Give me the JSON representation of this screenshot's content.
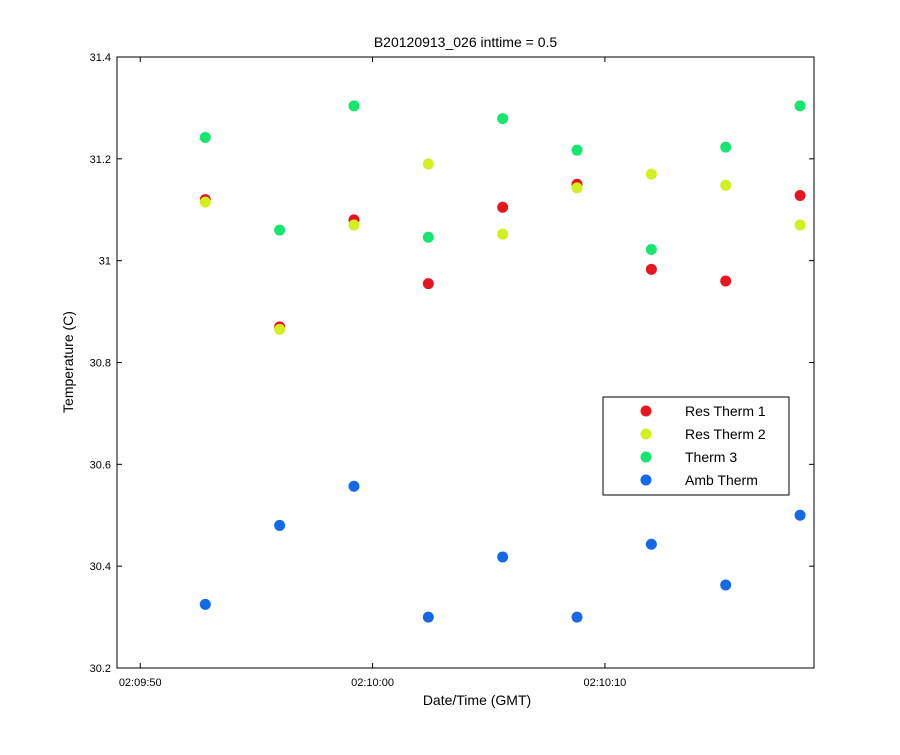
{
  "chart_data": {
    "type": "scatter",
    "title": "B20120913_026 inttime = 0.5",
    "xlabel": "Date/Time (GMT)",
    "ylabel": "Temperature (C)",
    "x_unit": "time (GMT)",
    "xlim": [
      "02:09:49",
      "02:10:19"
    ],
    "ylim": [
      30.2,
      31.4
    ],
    "xticks": [
      "02:09:50",
      "02:10:00",
      "02:10:10"
    ],
    "yticks": [
      "30.2",
      "30.4",
      "30.6",
      "30.8",
      "31",
      "31.2",
      "31.4"
    ],
    "x": [
      "02:09:52.8",
      "02:09:56.0",
      "02:09:59.2",
      "02:10:02.4",
      "02:10:05.6",
      "02:10:08.8",
      "02:10:12.0",
      "02:10:15.2",
      "02:10:18.4"
    ],
    "series": [
      {
        "name": "Res Therm 1",
        "color": "#e8141e",
        "values": [
          31.12,
          30.87,
          31.08,
          30.955,
          31.105,
          31.15,
          30.983,
          30.96,
          31.128
        ]
      },
      {
        "name": "Res Therm 2",
        "color": "#d2f01e",
        "values": [
          31.115,
          30.865,
          31.07,
          31.19,
          31.052,
          31.143,
          31.17,
          31.148,
          31.07
        ]
      },
      {
        "name": "Therm 3",
        "color": "#14e66e",
        "values": [
          31.242,
          31.06,
          31.304,
          31.046,
          31.279,
          31.217,
          31.022,
          31.223,
          31.304
        ]
      },
      {
        "name": "Amb Therm",
        "color": "#1469e6",
        "values": [
          30.325,
          30.48,
          30.557,
          30.3,
          30.418,
          30.3,
          30.443,
          30.363,
          30.5
        ]
      }
    ],
    "grid": false,
    "legend_position": "right"
  }
}
